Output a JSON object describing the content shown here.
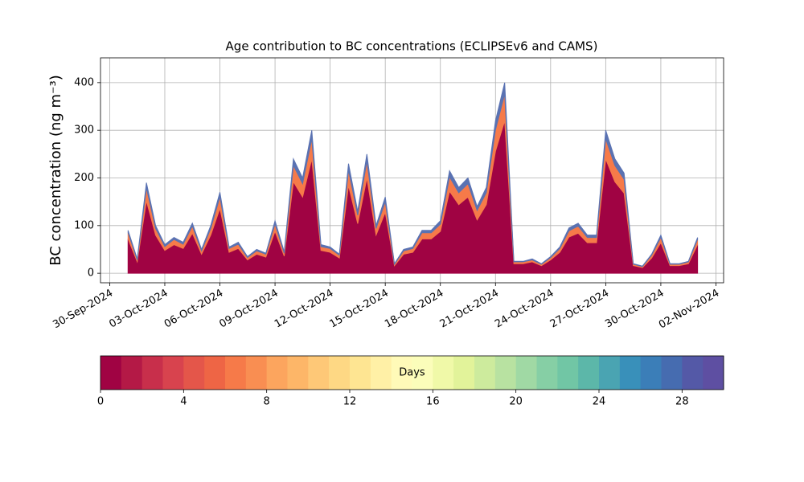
{
  "chart_data": {
    "type": "stacked_area",
    "title": "Age contribution to BC concentrations (ECLIPSEv6 and CAMS)",
    "y_label": "BC concentration (ng m⁻³)",
    "x": [
      "2024-10-01T00:00",
      "2024-10-01T12:00",
      "2024-10-02T00:00",
      "2024-10-02T12:00",
      "2024-10-03T00:00",
      "2024-10-03T12:00",
      "2024-10-04T00:00",
      "2024-10-04T12:00",
      "2024-10-05T00:00",
      "2024-10-05T12:00",
      "2024-10-06T00:00",
      "2024-10-06T12:00",
      "2024-10-07T00:00",
      "2024-10-07T12:00",
      "2024-10-08T00:00",
      "2024-10-08T12:00",
      "2024-10-09T00:00",
      "2024-10-09T12:00",
      "2024-10-10T00:00",
      "2024-10-10T12:00",
      "2024-10-11T00:00",
      "2024-10-11T12:00",
      "2024-10-12T00:00",
      "2024-10-12T12:00",
      "2024-10-13T00:00",
      "2024-10-13T12:00",
      "2024-10-14T00:00",
      "2024-10-14T12:00",
      "2024-10-15T00:00",
      "2024-10-15T12:00",
      "2024-10-16T00:00",
      "2024-10-16T12:00",
      "2024-10-17T00:00",
      "2024-10-17T12:00",
      "2024-10-18T00:00",
      "2024-10-18T12:00",
      "2024-10-19T00:00",
      "2024-10-19T12:00",
      "2024-10-20T00:00",
      "2024-10-20T12:00",
      "2024-10-21T00:00",
      "2024-10-21T12:00",
      "2024-10-22T00:00",
      "2024-10-22T12:00",
      "2024-10-23T00:00",
      "2024-10-23T12:00",
      "2024-10-24T00:00",
      "2024-10-24T12:00",
      "2024-10-25T00:00",
      "2024-10-25T12:00",
      "2024-10-26T00:00",
      "2024-10-26T12:00",
      "2024-10-27T00:00",
      "2024-10-27T12:00",
      "2024-10-28T00:00",
      "2024-10-28T12:00",
      "2024-10-29T00:00",
      "2024-10-29T12:00",
      "2024-10-30T00:00",
      "2024-10-30T12:00",
      "2024-10-31T00:00",
      "2024-10-31T12:00",
      "2024-11-01T00:00"
    ],
    "series": [
      {
        "color": "#a00343",
        "values": [
          72,
          24,
          152,
          80,
          48,
          60,
          52,
          84,
          40,
          80,
          136,
          44,
          52,
          28,
          40,
          34,
          88,
          36,
          192,
          160,
          240,
          48,
          44,
          32,
          184,
          104,
          200,
          80,
          128,
          16,
          40,
          44,
          72,
          72,
          88,
          172,
          144,
          160,
          112,
          144,
          256,
          320,
          20,
          20,
          24,
          16,
          28,
          44,
          76,
          84,
          64,
          64,
          240,
          192,
          168,
          16,
          12,
          32,
          64,
          16,
          16,
          20,
          60
        ]
      },
      {
        "color": "#f67a49",
        "values": [
          13,
          4,
          27,
          14,
          8,
          11,
          9,
          15,
          7,
          14,
          24,
          8,
          9,
          5,
          7,
          6,
          15,
          6,
          34,
          28,
          42,
          8,
          8,
          6,
          32,
          18,
          35,
          14,
          22,
          3,
          7,
          8,
          13,
          13,
          15,
          30,
          25,
          28,
          20,
          25,
          45,
          56,
          4,
          4,
          4,
          3,
          5,
          8,
          13,
          15,
          11,
          11,
          42,
          34,
          29,
          3,
          2,
          6,
          11,
          3,
          3,
          4,
          11
        ]
      },
      {
        "color": "#5a72b2",
        "values": [
          5,
          2,
          11,
          6,
          4,
          4,
          4,
          6,
          3,
          6,
          10,
          3,
          4,
          2,
          3,
          2,
          7,
          3,
          14,
          12,
          18,
          4,
          3,
          2,
          14,
          8,
          15,
          6,
          10,
          1,
          3,
          3,
          5,
          5,
          7,
          13,
          11,
          12,
          8,
          11,
          19,
          24,
          1,
          1,
          2,
          1,
          2,
          3,
          6,
          6,
          5,
          5,
          18,
          14,
          13,
          1,
          1,
          2,
          5,
          1,
          1,
          1,
          4
        ]
      }
    ],
    "xlim": [
      "2024-09-29T12:00",
      "2024-11-02T10:00"
    ],
    "xticks": [
      {
        "value": "2024-09-30T00:00",
        "label": "30-Sep-2024"
      },
      {
        "value": "2024-10-03T00:00",
        "label": "03-Oct-2024"
      },
      {
        "value": "2024-10-06T00:00",
        "label": "06-Oct-2024"
      },
      {
        "value": "2024-10-09T00:00",
        "label": "09-Oct-2024"
      },
      {
        "value": "2024-10-12T00:00",
        "label": "12-Oct-2024"
      },
      {
        "value": "2024-10-15T00:00",
        "label": "15-Oct-2024"
      },
      {
        "value": "2024-10-18T00:00",
        "label": "18-Oct-2024"
      },
      {
        "value": "2024-10-21T00:00",
        "label": "21-Oct-2024"
      },
      {
        "value": "2024-10-24T00:00",
        "label": "24-Oct-2024"
      },
      {
        "value": "2024-10-27T00:00",
        "label": "27-Oct-2024"
      },
      {
        "value": "2024-10-30T00:00",
        "label": "30-Oct-2024"
      },
      {
        "value": "2024-11-02T00:00",
        "label": "02-Nov-2024"
      }
    ],
    "ylim": [
      -20,
      452
    ],
    "yticks": [
      0,
      100,
      200,
      300,
      400
    ],
    "grid": true,
    "colorbar": {
      "label": "Days",
      "lim": [
        0,
        30
      ],
      "ticks": [
        0,
        4,
        8,
        12,
        16,
        20,
        24,
        28
      ],
      "colors": [
        "#a00343",
        "#b41946",
        "#c82f4b",
        "#d8434e",
        "#e4564a",
        "#ee6545",
        "#f67a49",
        "#f98e52",
        "#fca55e",
        "#fdb668",
        "#fec877",
        "#fed884",
        "#fee592",
        "#fff0a6",
        "#fffab8",
        "#fbfdba",
        "#f0f9a8",
        "#e2f39a",
        "#cdeb9d",
        "#b8e2a1",
        "#a0d9a4",
        "#86cfa5",
        "#71c6a5",
        "#5cb7a9",
        "#4aa4b2",
        "#3990ba",
        "#3b7eb8",
        "#466cb0",
        "#5459a7",
        "#5e4fa2"
      ]
    }
  }
}
